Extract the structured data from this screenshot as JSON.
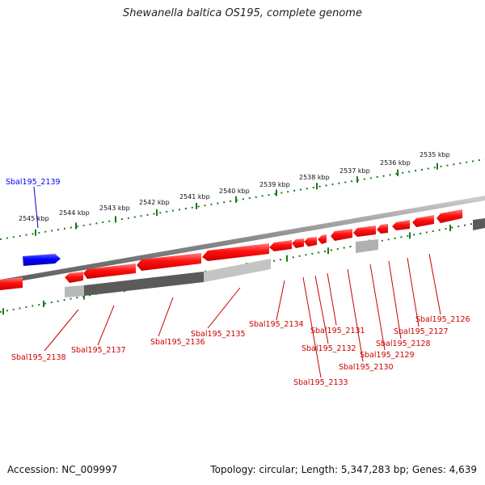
{
  "header": {
    "title": "Shewanella baltica OS195, complete genome"
  },
  "footer": {
    "accession": "Accession: NC_009997",
    "topology": "Topology: circular; Length: 5,347,283 bp; Genes: 4,639"
  },
  "scale_labels": [
    "2545 kbp",
    "2544 kbp",
    "2543 kbp",
    "2542 kbp",
    "2541 kbp",
    "2540 kbp",
    "2539 kbp",
    "2538 kbp",
    "2537 kbp",
    "2536 kbp",
    "2535 kbp"
  ],
  "genes_forward": [
    {
      "label": "Sbal195_2139",
      "color": "#0000ff"
    }
  ],
  "genes_reverse": [
    {
      "label": "Sbal195_2138",
      "color": "#cc0000"
    },
    {
      "label": "Sbal195_2137",
      "color": "#cc0000"
    },
    {
      "label": "Sbal195_2136",
      "color": "#cc0000"
    },
    {
      "label": "Sbal195_2135",
      "color": "#cc0000"
    },
    {
      "label": "Sbal195_2134",
      "color": "#cc0000"
    },
    {
      "label": "Sbal195_2133",
      "color": "#cc0000"
    },
    {
      "label": "Sbal195_2132",
      "color": "#cc0000"
    },
    {
      "label": "Sbal195_2131",
      "color": "#cc0000"
    },
    {
      "label": "Sbal195_2130",
      "color": "#cc0000"
    },
    {
      "label": "Sbal195_2129",
      "color": "#cc0000"
    },
    {
      "label": "Sbal195_2128",
      "color": "#cc0000"
    },
    {
      "label": "Sbal195_2127",
      "color": "#cc0000"
    },
    {
      "label": "Sbal195_2126",
      "color": "#cc0000"
    }
  ],
  "colors": {
    "forward_gene": "#0000ff",
    "reverse_gene": "#ff0000",
    "backbone": "#888888",
    "ticks": "#1a7a1a",
    "label_line_reverse": "#cc0000",
    "label_line_forward": "#0000cc"
  }
}
